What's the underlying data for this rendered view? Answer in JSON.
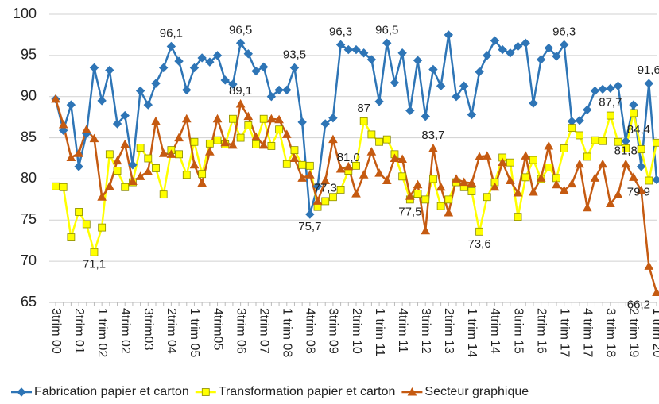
{
  "chart_data": {
    "type": "line",
    "categories": [
      "3trim 00",
      null,
      null,
      "2trim 01",
      null,
      null,
      "1 trim 02",
      null,
      null,
      "4trim 02",
      null,
      null,
      "3trim03",
      null,
      null,
      "2trim 04",
      null,
      null,
      "1 trim 05",
      null,
      null,
      "4trim05",
      null,
      null,
      "3trim 06",
      null,
      null,
      "2trim 07",
      null,
      null,
      "1 trim 08",
      null,
      null,
      "4trim 08",
      null,
      null,
      "3trim 09",
      null,
      null,
      "2trim 10",
      null,
      null,
      "1 trim 11",
      null,
      null,
      "4trim 11",
      null,
      null,
      "3trim 12",
      null,
      null,
      "2trim 13",
      null,
      null,
      "1 trim 14",
      null,
      null,
      "4trim 14",
      null,
      null,
      "3trim 15",
      null,
      null,
      "2trim 16",
      null,
      null,
      "1 trim 17",
      null,
      null,
      "4 trim 17",
      null,
      null,
      "3 trim 18",
      null,
      null,
      "2 trim 19",
      null,
      null,
      "1 trim 20"
    ],
    "series": [
      {
        "name": "Fabrication papier et carton",
        "color": "#2e75b6",
        "marker": "diamond",
        "values": [
          89.7,
          85.9,
          89.0,
          81.5,
          85.5,
          93.5,
          89.5,
          93.2,
          86.7,
          87.7,
          81.7,
          90.7,
          89.0,
          91.6,
          93.5,
          96.1,
          94.3,
          90.8,
          93.5,
          94.7,
          94.2,
          95.0,
          92.0,
          91.5,
          96.5,
          95.2,
          93.1,
          93.6,
          90.0,
          90.8,
          90.8,
          93.5,
          86.9,
          75.7,
          79.1,
          86.7,
          87.4,
          96.3,
          95.7,
          95.7,
          95.3,
          94.5,
          89.4,
          96.5,
          91.7,
          95.3,
          88.3,
          94.4,
          87.6,
          93.3,
          91.3,
          97.5,
          90.0,
          91.3,
          87.8,
          93.0,
          95.0,
          96.8,
          95.7,
          95.3,
          96.1,
          96.5,
          89.2,
          94.5,
          95.9,
          94.9,
          96.3,
          87.0,
          87.1,
          88.4,
          90.7,
          90.9,
          91.0,
          91.3,
          84.6,
          89.0,
          81.5,
          91.6,
          79.9
        ],
        "value_labels": [
          null,
          null,
          null,
          null,
          null,
          null,
          null,
          null,
          null,
          null,
          null,
          null,
          null,
          null,
          null,
          "96,1",
          null,
          null,
          null,
          null,
          null,
          null,
          null,
          null,
          "96,5",
          null,
          null,
          null,
          null,
          null,
          null,
          "93,5",
          null,
          "75,7",
          null,
          null,
          null,
          "96,3",
          null,
          null,
          null,
          null,
          null,
          "96,5",
          null,
          null,
          null,
          null,
          null,
          null,
          null,
          null,
          null,
          null,
          null,
          null,
          null,
          null,
          null,
          null,
          null,
          null,
          null,
          null,
          null,
          null,
          "96,3",
          null,
          null,
          null,
          null,
          null,
          null,
          null,
          null,
          null,
          null,
          "91,6",
          "79,9"
        ]
      },
      {
        "name": "Transformation papier et carton",
        "color": "#ffff00",
        "marker": "square",
        "values": [
          79.1,
          79.0,
          72.9,
          76.0,
          74.5,
          71.1,
          74.1,
          83.0,
          81.0,
          79.0,
          79.6,
          83.8,
          82.5,
          81.3,
          78.1,
          83.5,
          83.0,
          80.5,
          84.5,
          80.6,
          84.3,
          84.7,
          84.2,
          87.3,
          85.0,
          86.5,
          84.2,
          87.3,
          84.0,
          86.0,
          81.8,
          83.5,
          81.7,
          81.6,
          76.6,
          77.3,
          77.8,
          78.7,
          81.0,
          81.6,
          87.0,
          85.4,
          84.5,
          84.8,
          83.0,
          80.3,
          77.5,
          78.2,
          77.5,
          80.0,
          76.7,
          77.5,
          79.6,
          79.0,
          78.5,
          73.6,
          77.8,
          79.6,
          82.6,
          82.0,
          75.4,
          80.2,
          82.3,
          80.0,
          81.4,
          80.1,
          83.7,
          86.2,
          85.3,
          82.7,
          84.7,
          84.6,
          87.7,
          84.5,
          83.7,
          88.0,
          83.6,
          79.8,
          84.4
        ],
        "value_labels": [
          null,
          null,
          null,
          null,
          null,
          "71,1",
          null,
          null,
          null,
          null,
          null,
          null,
          null,
          null,
          null,
          null,
          null,
          null,
          null,
          null,
          null,
          null,
          null,
          null,
          null,
          null,
          null,
          null,
          null,
          null,
          null,
          null,
          null,
          null,
          null,
          "77,3",
          null,
          null,
          "81,0",
          null,
          "87",
          null,
          null,
          null,
          null,
          null,
          "77,5",
          null,
          null,
          null,
          null,
          null,
          null,
          null,
          null,
          "73,6",
          null,
          null,
          null,
          null,
          null,
          null,
          null,
          null,
          null,
          null,
          null,
          null,
          null,
          null,
          null,
          null,
          "87,7",
          null,
          null,
          null,
          null,
          null,
          "84,4"
        ]
      },
      {
        "name": "Secteur graphique",
        "color": "#c55a11",
        "marker": "triangle",
        "values": [
          89.7,
          86.6,
          82.6,
          83.1,
          86.0,
          84.9,
          77.8,
          79.1,
          82.2,
          84.2,
          79.7,
          80.3,
          80.9,
          87.0,
          83.1,
          83.0,
          85.0,
          87.3,
          81.7,
          79.5,
          83.3,
          87.3,
          84.4,
          84.1,
          89.1,
          87.6,
          85.1,
          84.1,
          87.3,
          87.2,
          85.4,
          82.5,
          80.1,
          80.5,
          77.3,
          79.8,
          84.8,
          81.2,
          81.5,
          78.2,
          80.5,
          83.3,
          80.7,
          79.8,
          82.5,
          82.4,
          77.9,
          79.3,
          73.7,
          83.7,
          79.0,
          75.9,
          80.0,
          79.6,
          79.5,
          82.7,
          82.8,
          79.0,
          82.0,
          79.8,
          78.3,
          82.8,
          78.4,
          80.1,
          84.0,
          79.3,
          78.6,
          79.4,
          81.8,
          76.5,
          80.1,
          81.8,
          77.0,
          78.1,
          81.8,
          80.2,
          78.6,
          69.4,
          66.2
        ],
        "value_labels": [
          null,
          null,
          null,
          null,
          null,
          null,
          null,
          null,
          null,
          null,
          null,
          null,
          null,
          null,
          null,
          null,
          null,
          null,
          null,
          null,
          null,
          null,
          null,
          null,
          "89,1",
          null,
          null,
          null,
          null,
          null,
          null,
          null,
          null,
          null,
          null,
          null,
          null,
          null,
          null,
          null,
          null,
          null,
          null,
          null,
          null,
          null,
          null,
          null,
          null,
          "83,7",
          null,
          null,
          null,
          null,
          null,
          null,
          null,
          null,
          null,
          null,
          null,
          null,
          null,
          null,
          null,
          null,
          null,
          null,
          null,
          null,
          null,
          null,
          null,
          null,
          "81,8",
          null,
          null,
          null,
          "66,2"
        ]
      }
    ],
    "ylim": [
      65,
      100
    ],
    "yticks": [
      65,
      70,
      75,
      80,
      85,
      90,
      95,
      100
    ],
    "grid": true,
    "legend": "bottom"
  }
}
